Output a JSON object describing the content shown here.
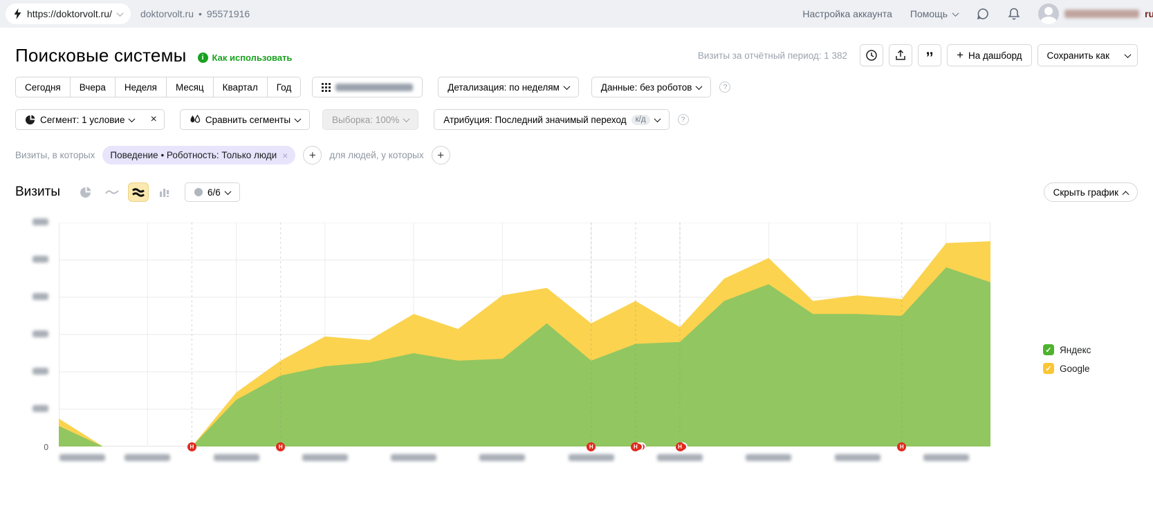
{
  "topbar": {
    "url": "https://doktorvolt.ru/",
    "counter_name": "doktorvolt.ru",
    "separator": "•",
    "counter_id": "95571916",
    "account_settings": "Настройка аккаунта",
    "help": "Помощь",
    "user_email_suffix": "ru"
  },
  "header": {
    "title": "Поисковые системы",
    "how_to_use": "Как использовать",
    "visits_period": "Визиты за отчётный период: 1 382",
    "dashboard_button": "На дашборд",
    "save_as_button": "Сохранить как"
  },
  "toolbar": {
    "periods": [
      "Сегодня",
      "Вчера",
      "Неделя",
      "Месяц",
      "Квартал",
      "Год"
    ],
    "detail_button": "Детализация: по неделям",
    "data_button": "Данные: без роботов",
    "segment_button": "Сегмент: 1 условие",
    "compare_button": "Сравнить сегменты",
    "sampling_button": "Выборка: 100%",
    "attribution_button": "Атрибуция: Последний значимый переход",
    "attribution_badge": "к/д"
  },
  "chips": {
    "visits_label": "Визиты, в которых",
    "chip_label": "Поведение • Роботность: Только люди",
    "people_label": "для людей, у которых"
  },
  "chart_header": {
    "title": "Визиты",
    "comments_count": "6/6",
    "hide_chart": "Скрыть график"
  },
  "chart_data": {
    "type": "area",
    "stacked": true,
    "title": "Визиты",
    "xlabel": "",
    "ylabel": "",
    "ylim": [
      0,
      120
    ],
    "y_ticks": [
      0,
      20,
      40,
      60,
      80,
      100,
      120
    ],
    "y_ticks_blurred_except_zero": true,
    "x_tick_count": 11,
    "x_labels_blurred": true,
    "grid": true,
    "legend_position": "right",
    "series": [
      {
        "name": "Яндекс",
        "color": "#92c661",
        "values": [
          11,
          0,
          0,
          0,
          25,
          38,
          43,
          45,
          50,
          46,
          47,
          66,
          46,
          55,
          56,
          78,
          87,
          71,
          71,
          70,
          96,
          88
        ]
      },
      {
        "name": "Google",
        "color": "#fbd34f",
        "values": [
          4,
          0,
          0,
          0,
          4,
          8,
          16,
          12,
          21,
          17,
          34,
          19,
          20,
          23,
          8,
          12,
          14,
          7,
          10,
          9,
          13,
          22
        ]
      }
    ],
    "legend": [
      {
        "label": "Яндекс",
        "color": "#4db32c"
      },
      {
        "label": "Google",
        "color": "#fbc634"
      }
    ],
    "note_markers": {
      "label": "Н",
      "color": "#e02a1e",
      "items": [
        {
          "index": 3,
          "echoes": 0
        },
        {
          "index": 5,
          "echoes": 0
        },
        {
          "index": 12,
          "echoes": 0
        },
        {
          "index": 13,
          "echoes": 2
        },
        {
          "index": 14,
          "echoes": 1
        },
        {
          "index": 19,
          "echoes": 0
        }
      ]
    }
  }
}
